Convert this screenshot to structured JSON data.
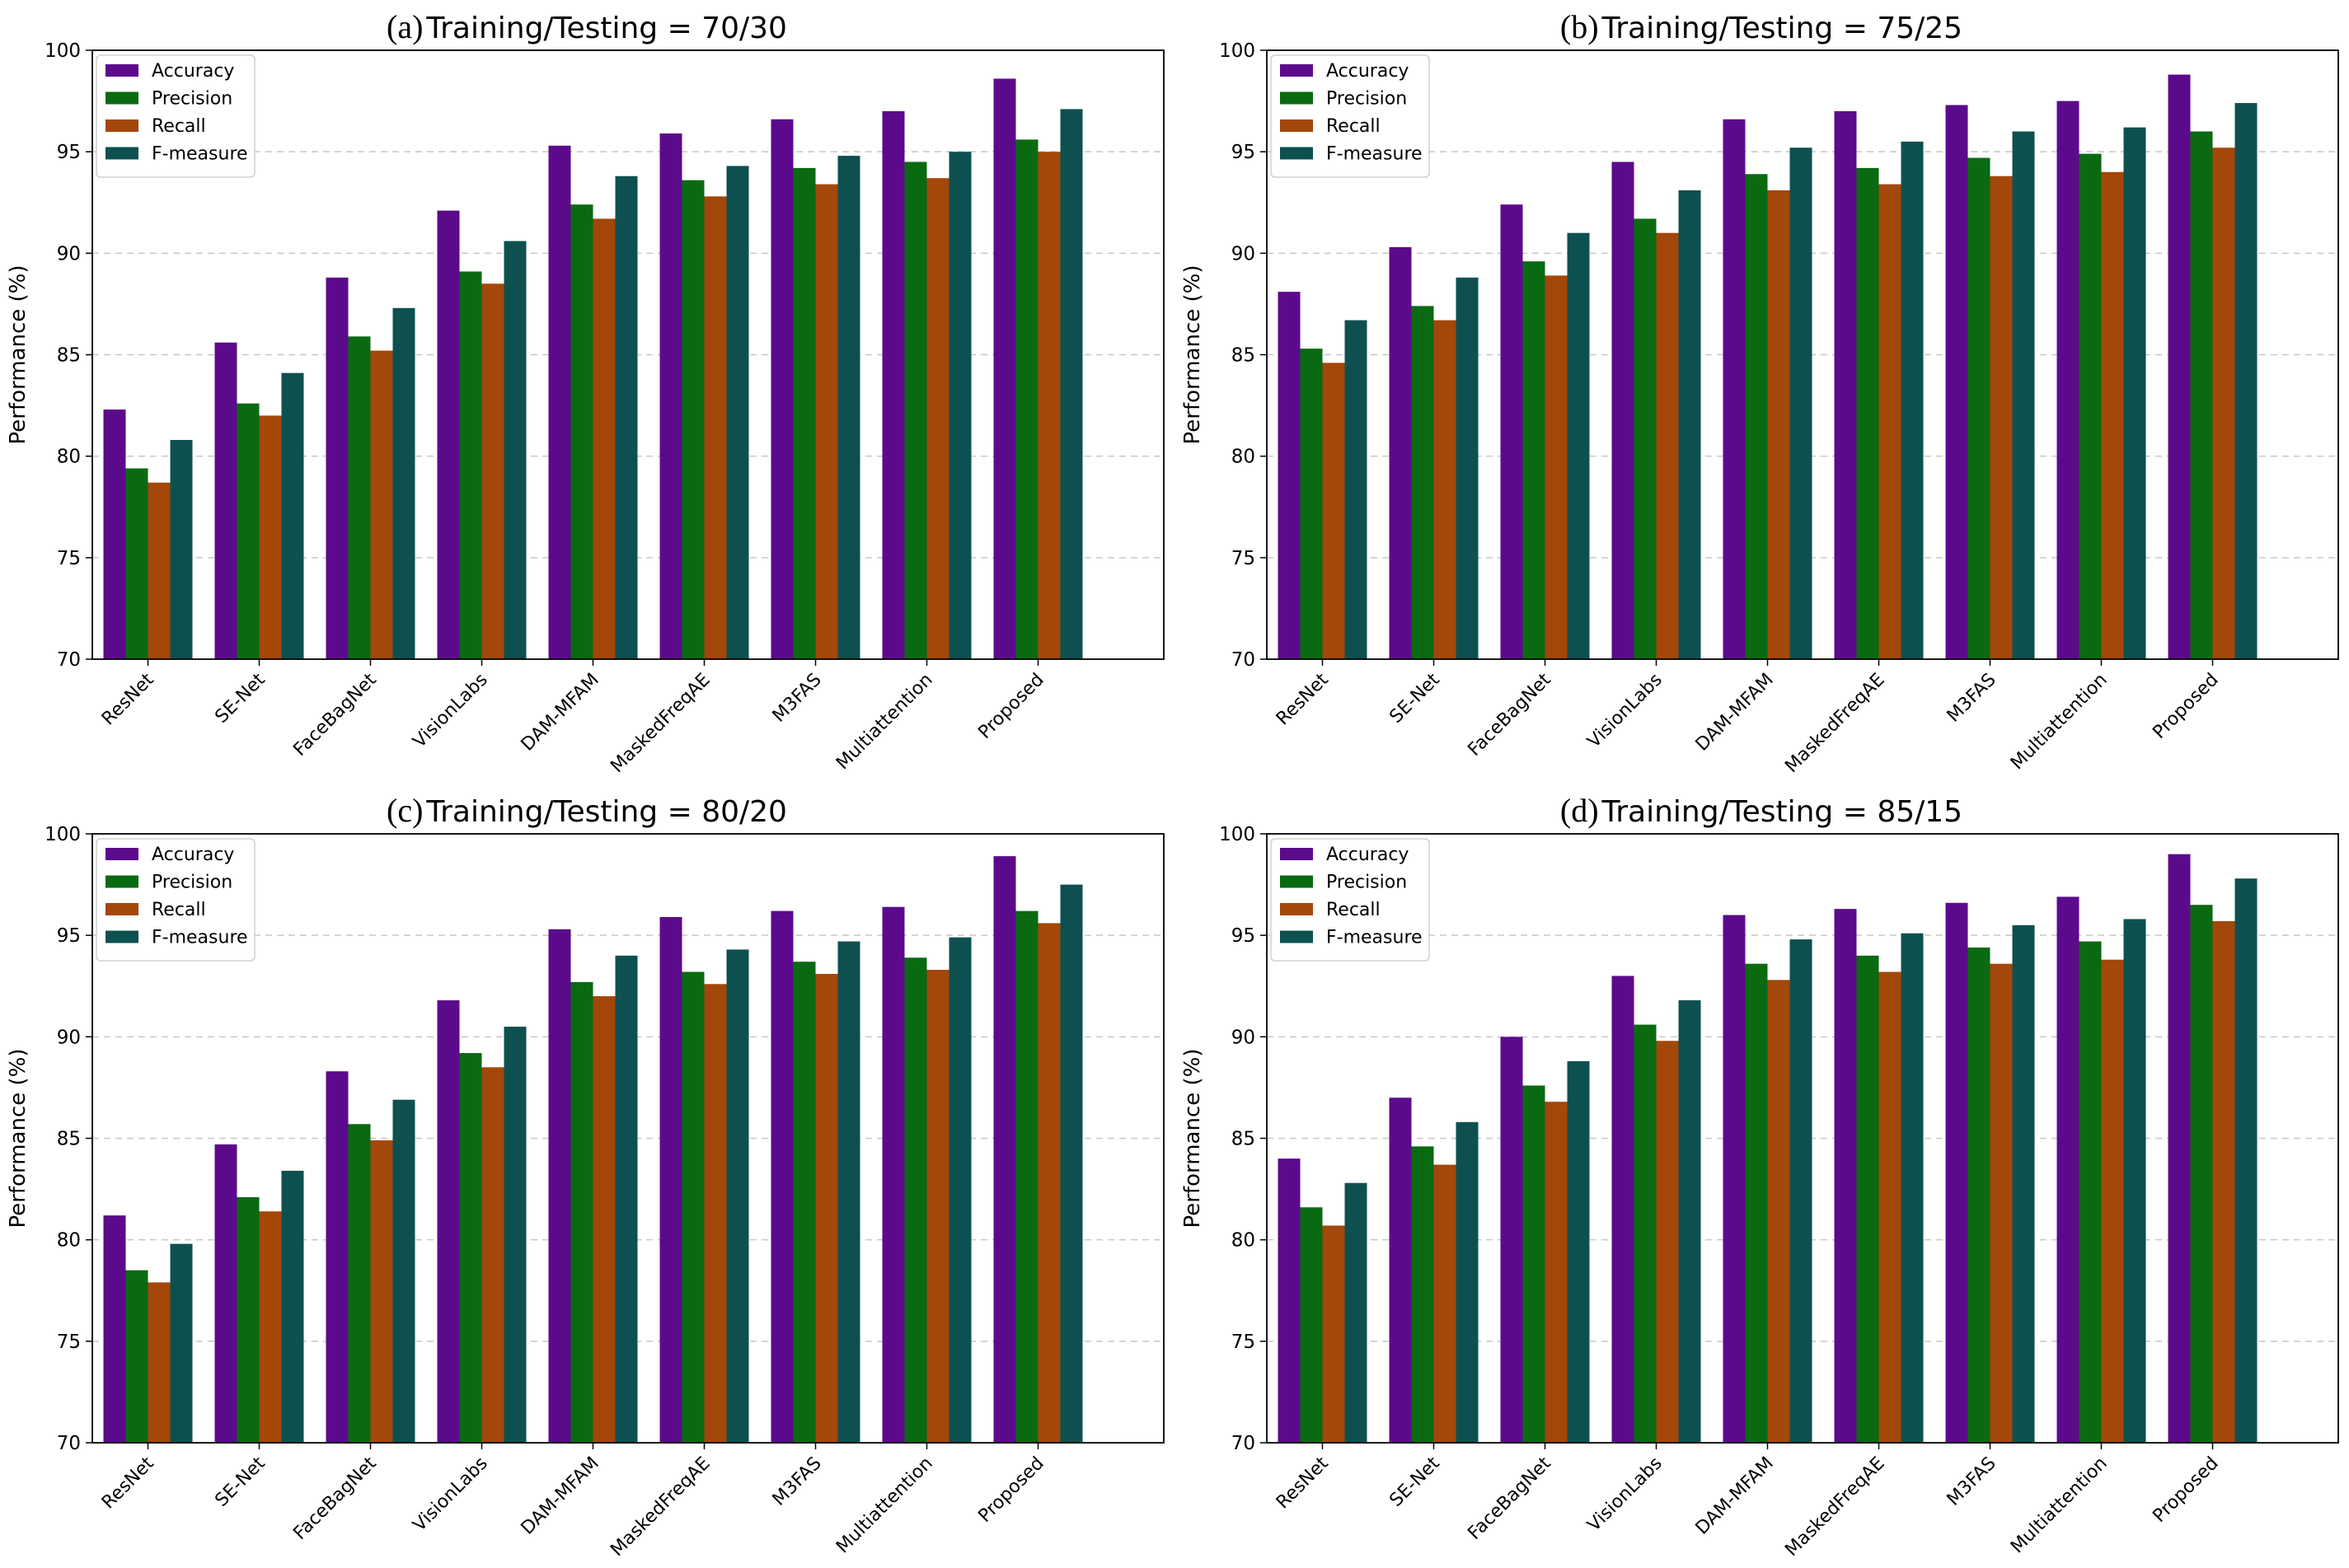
{
  "chart_data": [
    {
      "type": "bar",
      "panel_label": "(a)",
      "title": "Training/Testing = 70/30",
      "xlabel": "",
      "ylabel": "Performance (%)",
      "ylim": [
        70,
        100
      ],
      "yticks": [
        70,
        75,
        80,
        85,
        90,
        95,
        100
      ],
      "grid": "horizontal dashed",
      "legend_position": "top-left",
      "categories": [
        "ResNet",
        "SE-Net",
        "FaceBagNet",
        "VisionLabs",
        "DAM-MFAM",
        "MaskedFreqAE",
        "M3FAS",
        "Multiattention",
        "Proposed"
      ],
      "series": [
        {
          "name": "Accuracy",
          "color": "#5c0a8c",
          "values": [
            82.3,
            85.6,
            88.8,
            92.1,
            95.3,
            95.9,
            96.6,
            97.0,
            98.6
          ]
        },
        {
          "name": "Precision",
          "color": "#0a6a12",
          "values": [
            79.4,
            82.6,
            85.9,
            89.1,
            92.4,
            93.6,
            94.2,
            94.5,
            95.6
          ]
        },
        {
          "name": "Recall",
          "color": "#a3470a",
          "values": [
            78.7,
            82.0,
            85.2,
            88.5,
            91.7,
            92.8,
            93.4,
            93.7,
            95.0
          ]
        },
        {
          "name": "F-measure",
          "color": "#0e5050",
          "values": [
            80.8,
            84.1,
            87.3,
            90.6,
            93.8,
            94.3,
            94.8,
            95.0,
            97.1
          ]
        }
      ]
    },
    {
      "type": "bar",
      "panel_label": "(b)",
      "title": "Training/Testing = 75/25",
      "xlabel": "",
      "ylabel": "Performance (%)",
      "ylim": [
        70,
        100
      ],
      "yticks": [
        70,
        75,
        80,
        85,
        90,
        95,
        100
      ],
      "grid": "horizontal dashed",
      "legend_position": "top-left",
      "categories": [
        "ResNet",
        "SE-Net",
        "FaceBagNet",
        "VisionLabs",
        "DAM-MFAM",
        "MaskedFreqAE",
        "M3FAS",
        "Multiattention",
        "Proposed"
      ],
      "series": [
        {
          "name": "Accuracy",
          "color": "#5c0a8c",
          "values": [
            88.1,
            90.3,
            92.4,
            94.5,
            96.6,
            97.0,
            97.3,
            97.5,
            98.8
          ]
        },
        {
          "name": "Precision",
          "color": "#0a6a12",
          "values": [
            85.3,
            87.4,
            89.6,
            91.7,
            93.9,
            94.2,
            94.7,
            94.9,
            96.0
          ]
        },
        {
          "name": "Recall",
          "color": "#a3470a",
          "values": [
            84.6,
            86.7,
            88.9,
            91.0,
            93.1,
            93.4,
            93.8,
            94.0,
            95.2
          ]
        },
        {
          "name": "F-measure",
          "color": "#0e5050",
          "values": [
            86.7,
            88.8,
            91.0,
            93.1,
            95.2,
            95.5,
            96.0,
            96.2,
            97.4
          ]
        }
      ]
    },
    {
      "type": "bar",
      "panel_label": "(c)",
      "title": "Training/Testing = 80/20",
      "xlabel": "",
      "ylabel": "Performance (%)",
      "ylim": [
        70,
        100
      ],
      "yticks": [
        70,
        75,
        80,
        85,
        90,
        95,
        100
      ],
      "grid": "horizontal dashed",
      "legend_position": "top-left",
      "categories": [
        "ResNet",
        "SE-Net",
        "FaceBagNet",
        "VisionLabs",
        "DAM-MFAM",
        "MaskedFreqAE",
        "M3FAS",
        "Multiattention",
        "Proposed"
      ],
      "series": [
        {
          "name": "Accuracy",
          "color": "#5c0a8c",
          "values": [
            81.2,
            84.7,
            88.3,
            91.8,
            95.3,
            95.9,
            96.2,
            96.4,
            98.9
          ]
        },
        {
          "name": "Precision",
          "color": "#0a6a12",
          "values": [
            78.5,
            82.1,
            85.7,
            89.2,
            92.7,
            93.2,
            93.7,
            93.9,
            96.2
          ]
        },
        {
          "name": "Recall",
          "color": "#a3470a",
          "values": [
            77.9,
            81.4,
            84.9,
            88.5,
            92.0,
            92.6,
            93.1,
            93.3,
            95.6
          ]
        },
        {
          "name": "F-measure",
          "color": "#0e5050",
          "values": [
            79.8,
            83.4,
            86.9,
            90.5,
            94.0,
            94.3,
            94.7,
            94.9,
            97.5
          ]
        }
      ]
    },
    {
      "type": "bar",
      "panel_label": "(d)",
      "title": "Training/Testing = 85/15",
      "xlabel": "",
      "ylabel": "Performance (%)",
      "ylim": [
        70,
        100
      ],
      "yticks": [
        70,
        75,
        80,
        85,
        90,
        95,
        100
      ],
      "grid": "horizontal dashed",
      "legend_position": "top-left",
      "categories": [
        "ResNet",
        "SE-Net",
        "FaceBagNet",
        "VisionLabs",
        "DAM-MFAM",
        "MaskedFreqAE",
        "M3FAS",
        "Multiattention",
        "Proposed"
      ],
      "series": [
        {
          "name": "Accuracy",
          "color": "#5c0a8c",
          "values": [
            84.0,
            87.0,
            90.0,
            93.0,
            96.0,
            96.3,
            96.6,
            96.9,
            99.0
          ]
        },
        {
          "name": "Precision",
          "color": "#0a6a12",
          "values": [
            81.6,
            84.6,
            87.6,
            90.6,
            93.6,
            94.0,
            94.4,
            94.7,
            96.5
          ]
        },
        {
          "name": "Recall",
          "color": "#a3470a",
          "values": [
            80.7,
            83.7,
            86.8,
            89.8,
            92.8,
            93.2,
            93.6,
            93.8,
            95.7
          ]
        },
        {
          "name": "F-measure",
          "color": "#0e5050",
          "values": [
            82.8,
            85.8,
            88.8,
            91.8,
            94.8,
            95.1,
            95.5,
            95.8,
            97.8
          ]
        }
      ]
    }
  ]
}
